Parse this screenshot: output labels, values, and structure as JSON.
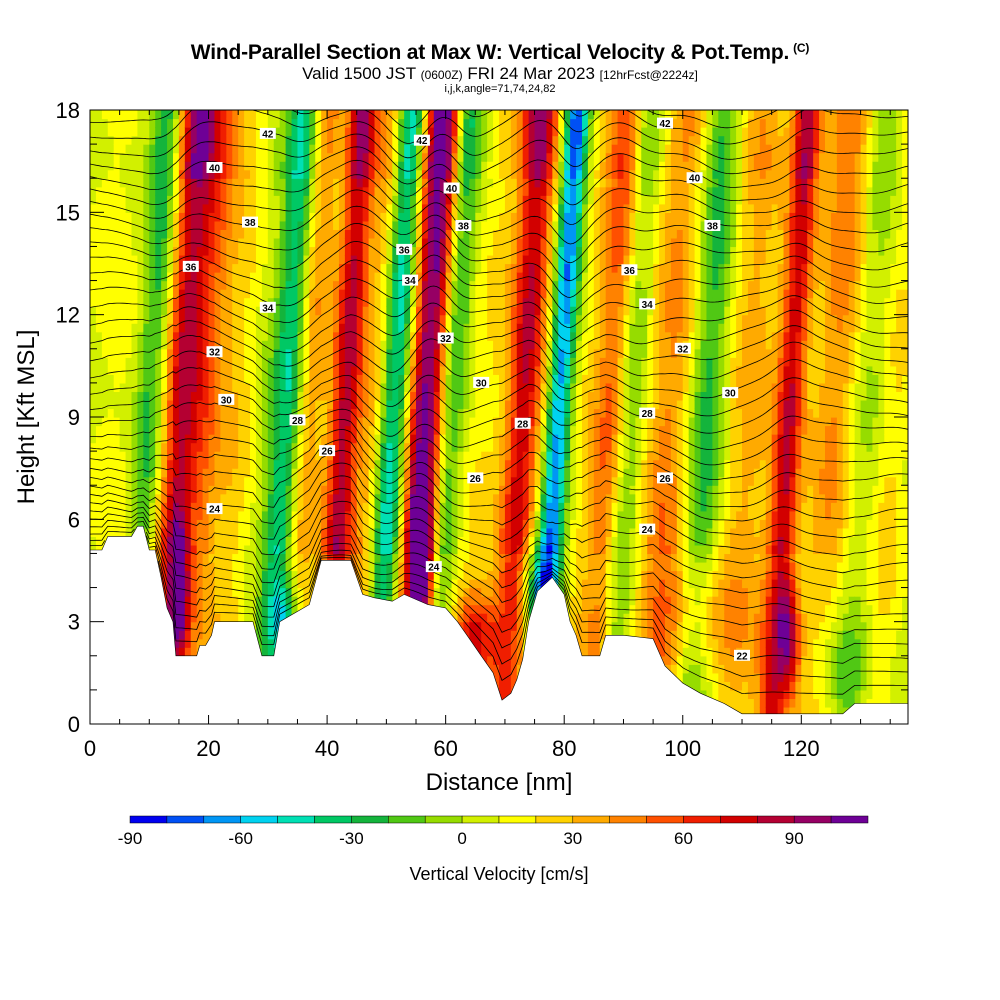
{
  "title": {
    "main": "Wind-Parallel Section at Max W: Vertical Velocity & Pot.Temp.",
    "corner_mark": "(C)",
    "valid_prefix": "Valid 1500 JST",
    "utc_time": "(0600Z)",
    "valid_date": "FRI 24 Mar 2023",
    "forecast_info": "[12hrFcst@2224z]",
    "indices": "i,j,k,angle=71,74,24,82"
  },
  "chart_data": {
    "type": "heatmap",
    "xlabel": "Distance [nm]",
    "ylabel": "Height [Kft MSL]",
    "xlim": [
      0,
      138
    ],
    "ylim": [
      0,
      18
    ],
    "x_ticks": [
      0,
      20,
      40,
      60,
      80,
      100,
      120
    ],
    "y_ticks": [
      0,
      3,
      6,
      9,
      12,
      15,
      18
    ],
    "colorbar": {
      "title": "Vertical Velocity [cm/s]",
      "range": [
        -90,
        110
      ],
      "step": 10,
      "tick_values": [
        -90,
        -60,
        -30,
        0,
        30,
        60,
        90
      ],
      "colors": [
        "#0000f0",
        "#0050f5",
        "#0096f5",
        "#00d2f0",
        "#00e0b4",
        "#00c864",
        "#14b43c",
        "#50c814",
        "#96dc00",
        "#d2f000",
        "#ffff00",
        "#ffd200",
        "#ffaa00",
        "#ff8200",
        "#ff5000",
        "#f01e00",
        "#d20000",
        "#b40032",
        "#960064",
        "#6e0096"
      ]
    },
    "vertical_velocity_columns": [
      {
        "x": 15,
        "w": 3.0,
        "amp": 80
      },
      {
        "x": 19,
        "w": 3.5,
        "amp": 45
      },
      {
        "x": 10,
        "w": 2.5,
        "amp": -35
      },
      {
        "x": 25,
        "w": 3.0,
        "amp": 15
      },
      {
        "x": 33,
        "w": 2.5,
        "amp": -50
      },
      {
        "x": 37,
        "w": 2.5,
        "amp": 30
      },
      {
        "x": 43,
        "w": 2.5,
        "amp": 85
      },
      {
        "x": 48,
        "w": 3.0,
        "amp": 40
      },
      {
        "x": 51,
        "w": 2.5,
        "amp": -70
      },
      {
        "x": 56,
        "w": 2.5,
        "amp": 95
      },
      {
        "x": 58.5,
        "w": 2.0,
        "amp": 45
      },
      {
        "x": 60.5,
        "w": 2.5,
        "amp": -45
      },
      {
        "x": 67,
        "w": 3.5,
        "amp": 20
      },
      {
        "x": 73,
        "w": 3.0,
        "amp": 80
      },
      {
        "x": 79,
        "w": 2.0,
        "amp": -90
      },
      {
        "x": 85,
        "w": 3.0,
        "amp": 25
      },
      {
        "x": 88,
        "w": 2.5,
        "amp": 50
      },
      {
        "x": 91,
        "w": 3.0,
        "amp": -30
      },
      {
        "x": 98,
        "w": 4.0,
        "amp": 40
      },
      {
        "x": 104,
        "w": 3.0,
        "amp": -35
      },
      {
        "x": 111,
        "w": 4.0,
        "amp": 25
      },
      {
        "x": 118,
        "w": 2.5,
        "amp": 85
      },
      {
        "x": 125,
        "w": 4.0,
        "amp": 40
      },
      {
        "x": 131,
        "w": 3.0,
        "amp": -20
      },
      {
        "x": 136,
        "w": 3.0,
        "amp": 20
      }
    ],
    "low_level_cells": [
      {
        "x": 15,
        "y": 4.0,
        "rx": 1.5,
        "ry": 1.8,
        "amp": 70
      },
      {
        "x": 56,
        "y": 5.0,
        "rx": 2.0,
        "ry": 1.8,
        "amp": 70
      },
      {
        "x": 65,
        "y": 2.5,
        "rx": 4.0,
        "ry": 1.5,
        "amp": 60
      },
      {
        "x": 76,
        "y": 4.0,
        "rx": 3.0,
        "ry": 1.5,
        "amp": -60
      },
      {
        "x": 33,
        "y": 3.0,
        "rx": 2.0,
        "ry": 1.2,
        "amp": -40
      },
      {
        "x": 118,
        "y": 2.5,
        "rx": 2.0,
        "ry": 1.8,
        "amp": 60
      },
      {
        "x": 126,
        "y": 1.5,
        "rx": 6.0,
        "ry": 1.5,
        "amp": -25
      },
      {
        "x": 102,
        "y": 3.0,
        "rx": 8.0,
        "ry": 2.0,
        "amp": 30
      }
    ],
    "terrain_profile": [
      [
        0,
        5.1
      ],
      [
        2,
        5.1
      ],
      [
        3,
        5.5
      ],
      [
        7,
        5.5
      ],
      [
        8,
        5.8
      ],
      [
        9,
        5.8
      ],
      [
        10,
        5.1
      ],
      [
        11,
        5.1
      ],
      [
        12,
        4.3
      ],
      [
        13,
        3.4
      ],
      [
        14,
        3.0
      ],
      [
        14.5,
        2.0
      ],
      [
        18,
        2.0
      ],
      [
        18.5,
        2.3
      ],
      [
        19.5,
        2.3
      ],
      [
        20.5,
        2.6
      ],
      [
        21,
        3.0
      ],
      [
        27.5,
        3.0
      ],
      [
        29,
        2.0
      ],
      [
        31,
        2.0
      ],
      [
        32,
        3.0
      ],
      [
        37,
        3.5
      ],
      [
        39,
        4.8
      ],
      [
        44,
        4.8
      ],
      [
        46,
        3.8
      ],
      [
        48,
        3.7
      ],
      [
        51,
        3.6
      ],
      [
        53,
        3.8
      ],
      [
        57,
        3.5
      ],
      [
        60,
        3.4
      ],
      [
        62,
        3.0
      ],
      [
        64,
        2.5
      ],
      [
        66,
        2.0
      ],
      [
        68,
        1.5
      ],
      [
        69.5,
        0.7
      ],
      [
        71,
        0.9
      ],
      [
        72,
        1.3
      ],
      [
        73,
        1.9
      ],
      [
        74,
        3.0
      ],
      [
        75.5,
        3.9
      ],
      [
        78,
        4.3
      ],
      [
        80,
        3.8
      ],
      [
        81,
        3.0
      ],
      [
        82,
        2.6
      ],
      [
        83,
        2.0
      ],
      [
        86,
        2.0
      ],
      [
        87,
        2.6
      ],
      [
        90,
        2.6
      ],
      [
        95,
        2.5
      ],
      [
        97,
        1.7
      ],
      [
        100,
        1.2
      ],
      [
        103,
        0.9
      ],
      [
        107,
        0.6
      ],
      [
        110,
        0.3
      ],
      [
        127,
        0.3
      ],
      [
        129,
        0.6
      ],
      [
        138,
        0.6
      ]
    ],
    "theta_levels_K": [
      20,
      22,
      24,
      26,
      28,
      30,
      32,
      34,
      36,
      38,
      40,
      42
    ],
    "contour_labels": [
      {
        "text": "42",
        "x": 30,
        "y": 17.3
      },
      {
        "text": "40",
        "x": 21,
        "y": 16.3
      },
      {
        "text": "38",
        "x": 27,
        "y": 14.7
      },
      {
        "text": "36",
        "x": 17,
        "y": 13.4
      },
      {
        "text": "34",
        "x": 30,
        "y": 12.2
      },
      {
        "text": "32",
        "x": 21,
        "y": 10.9
      },
      {
        "text": "30",
        "x": 23,
        "y": 9.5
      },
      {
        "text": "28",
        "x": 35,
        "y": 8.9
      },
      {
        "text": "26",
        "x": 40,
        "y": 8.0
      },
      {
        "text": "24",
        "x": 21,
        "y": 6.3
      },
      {
        "text": "42",
        "x": 56,
        "y": 17.1
      },
      {
        "text": "40",
        "x": 61,
        "y": 15.7
      },
      {
        "text": "38",
        "x": 63,
        "y": 14.6
      },
      {
        "text": "36",
        "x": 53,
        "y": 13.9
      },
      {
        "text": "34",
        "x": 54,
        "y": 13.0
      },
      {
        "text": "32",
        "x": 60,
        "y": 11.3
      },
      {
        "text": "30",
        "x": 66,
        "y": 10.0
      },
      {
        "text": "28",
        "x": 73,
        "y": 8.8
      },
      {
        "text": "26",
        "x": 65,
        "y": 7.2
      },
      {
        "text": "24",
        "x": 58,
        "y": 4.6
      },
      {
        "text": "42",
        "x": 97,
        "y": 17.6
      },
      {
        "text": "40",
        "x": 102,
        "y": 16.0
      },
      {
        "text": "38",
        "x": 105,
        "y": 14.6
      },
      {
        "text": "36",
        "x": 91,
        "y": 13.3
      },
      {
        "text": "34",
        "x": 94,
        "y": 12.3
      },
      {
        "text": "32",
        "x": 100,
        "y": 11.0
      },
      {
        "text": "30",
        "x": 108,
        "y": 9.7
      },
      {
        "text": "28",
        "x": 94,
        "y": 9.1
      },
      {
        "text": "26",
        "x": 97,
        "y": 7.2
      },
      {
        "text": "24",
        "x": 94,
        "y": 5.7
      },
      {
        "text": "22",
        "x": 110,
        "y": 2.0
      }
    ]
  }
}
